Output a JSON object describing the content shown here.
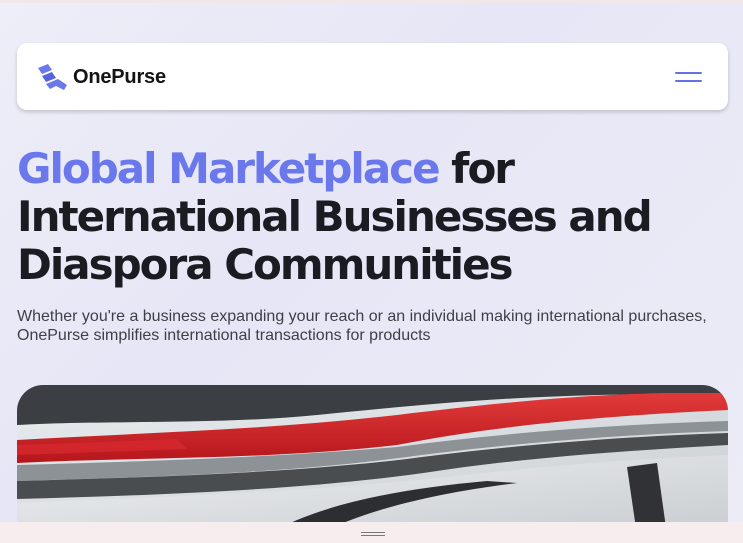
{
  "brand": {
    "name": "OnePurse",
    "accent_color": "#6a78ec",
    "logo_icon": "onepurse-logo-icon"
  },
  "nav": {
    "menu_icon": "hamburger-menu-icon"
  },
  "hero": {
    "headline_accent": "Global Marketplace",
    "headline_rest_line1": " for",
    "headline_line2": "International Businesses and",
    "headline_line3": "Diaspora Communities",
    "subtitle": "Whether you're a business expanding your reach or an individual making international purchases, OnePurse simplifies international transactions for products",
    "image_icon": "car-photo-image"
  },
  "window": {
    "resize_handle_icon": "drag-handle-icon"
  }
}
